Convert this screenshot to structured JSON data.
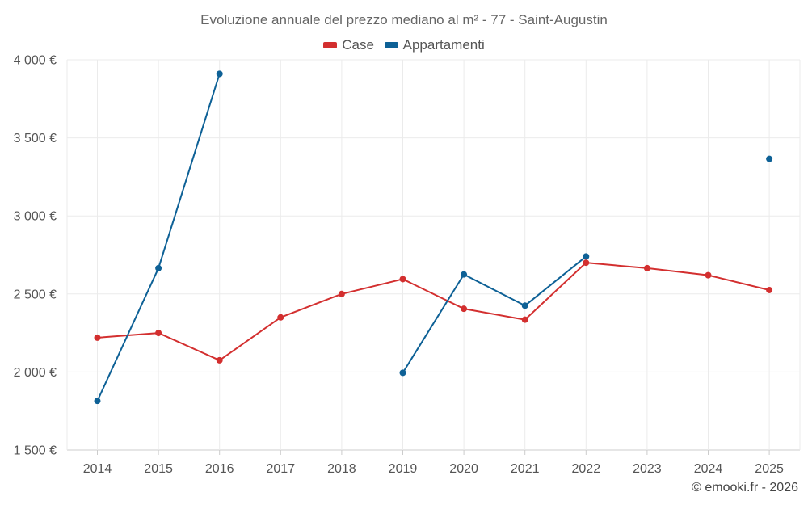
{
  "chart_data": {
    "type": "line",
    "title": "Evoluzione annuale del prezzo mediano al m² - 77 - Saint-Augustin",
    "xlabel": "",
    "ylabel": "",
    "categories": [
      "2014",
      "2015",
      "2016",
      "2017",
      "2018",
      "2019",
      "2020",
      "2021",
      "2022",
      "2023",
      "2024",
      "2025"
    ],
    "ylim": [
      1500,
      4000
    ],
    "yticks": [
      1500,
      2000,
      2500,
      3000,
      3500,
      4000
    ],
    "ytick_labels": [
      "1 500 €",
      "2 000 €",
      "2 500 €",
      "3 000 €",
      "3 500 €",
      "4 000 €"
    ],
    "grid": true,
    "legend_position": "top-center",
    "series": [
      {
        "name": "Case",
        "color": "#d32f2f",
        "values": [
          2220,
          2250,
          2075,
          2350,
          2500,
          2595,
          2405,
          2335,
          2700,
          2665,
          2620,
          2525
        ]
      },
      {
        "name": "Appartamenti",
        "color": "#0e6196",
        "values": [
          1815,
          2665,
          3910,
          null,
          null,
          1995,
          2625,
          2425,
          2740,
          null,
          null,
          3365
        ]
      }
    ]
  },
  "footer": {
    "copyright": "© emooki.fr - 2026"
  }
}
